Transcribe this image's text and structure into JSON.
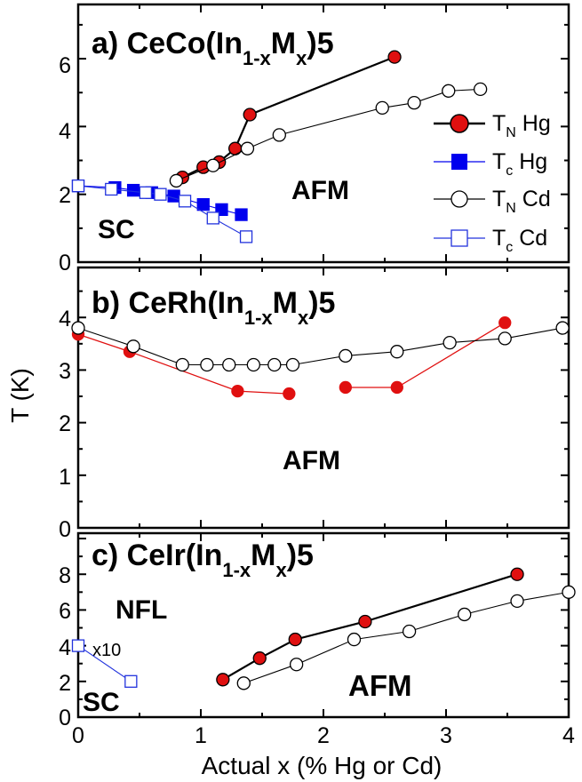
{
  "chart_data": {
    "type": "scatter",
    "xlabel": "Actual x (% Hg or Cd)",
    "ylabel": "T (K)",
    "xlim": [
      0,
      4
    ],
    "xticks": [
      "0",
      "1",
      "2",
      "3",
      "4"
    ],
    "colors": {
      "hg": "#e01010",
      "hg_line": "#000000",
      "tn_hg_b_line": "#e01010",
      "tc_hg": "#0000ee",
      "cd": "#000000",
      "tc_cd": "#2233dd"
    },
    "legend": {
      "placement": "right",
      "entries": [
        {
          "main": "T",
          "sub": "N",
          "rest": " Hg"
        },
        {
          "main": "T",
          "sub": "c",
          "rest": " Hg"
        },
        {
          "main": "T",
          "sub": "N",
          "rest": " Cd"
        },
        {
          "main": "T",
          "sub": "c",
          "rest": " Cd"
        }
      ]
    },
    "panels": [
      {
        "title": {
          "prefix": "a) CeCo(In",
          "sub": "1-x",
          "mid": "M",
          "sub2": "x",
          "suffix": ")5"
        },
        "ylim": [
          0,
          7.6
        ],
        "yticks": [
          "0",
          "2",
          "4",
          "6"
        ],
        "annotations": [
          "AFM",
          "SC"
        ],
        "series": [
          {
            "name": "TN Hg",
            "marker": "circle",
            "filled": true,
            "x": [
              0.85,
              1.02,
              1.15,
              1.28,
              1.4,
              2.58
            ],
            "y": [
              2.5,
              2.8,
              2.95,
              3.35,
              4.35,
              6.05
            ]
          },
          {
            "name": "Tc Hg",
            "marker": "square",
            "filled": true,
            "x": [
              0.0,
              0.3,
              0.45,
              0.6,
              0.78,
              1.02,
              1.17,
              1.33
            ],
            "y": [
              2.25,
              2.2,
              2.12,
              2.05,
              1.95,
              1.7,
              1.55,
              1.4
            ]
          },
          {
            "name": "TN Cd",
            "marker": "circle",
            "filled": false,
            "x": [
              0.8,
              1.1,
              1.38,
              1.64,
              2.48,
              2.74,
              3.02,
              3.28
            ],
            "y": [
              2.4,
              2.85,
              3.35,
              3.75,
              4.55,
              4.7,
              5.05,
              5.1
            ]
          },
          {
            "name": "Tc Cd",
            "marker": "square",
            "filled": false,
            "x": [
              0.0,
              0.27,
              0.55,
              0.67,
              0.87,
              1.1,
              1.37
            ],
            "y": [
              2.25,
              2.15,
              2.05,
              2.0,
              1.8,
              1.3,
              0.75
            ]
          }
        ]
      },
      {
        "title": {
          "prefix": "b) CeRh(In",
          "sub": "1-x",
          "mid": "M",
          "sub2": "x",
          "suffix": ")5"
        },
        "ylim": [
          0,
          4.95
        ],
        "yticks": [
          "0",
          "1",
          "2",
          "3",
          "4"
        ],
        "annotations": [
          "AFM"
        ],
        "series": [
          {
            "name": "TN Hg",
            "marker": "circle",
            "filled": true,
            "segments": [
              [
                0,
                4
              ],
              [
                4,
                7
              ]
            ],
            "x": [
              0.0,
              0.42,
              1.3,
              1.72,
              2.18,
              2.6,
              3.48
            ],
            "y": [
              3.68,
              3.35,
              2.6,
              2.55,
              2.67,
              2.67,
              3.9
            ]
          },
          {
            "name": "TN Cd",
            "marker": "circle",
            "filled": false,
            "x": [
              0.0,
              0.45,
              0.85,
              1.05,
              1.23,
              1.43,
              1.6,
              1.75,
              2.18,
              2.6,
              3.03,
              3.48,
              3.95
            ],
            "y": [
              3.8,
              3.45,
              3.1,
              3.1,
              3.1,
              3.1,
              3.1,
              3.1,
              3.27,
              3.35,
              3.52,
              3.6,
              3.8
            ]
          }
        ]
      },
      {
        "title": {
          "prefix": "c) CeIr(In",
          "sub": "1-x",
          "mid": "M",
          "sub2": "x",
          "suffix": ")5"
        },
        "ylim": [
          0,
          10.3
        ],
        "yticks": [
          "0",
          "2",
          "4",
          "6",
          "8"
        ],
        "annotations": [
          "NFL",
          "x10",
          "SC",
          "AFM"
        ],
        "series": [
          {
            "name": "TN Hg",
            "marker": "circle",
            "filled": true,
            "x": [
              1.18,
              1.48,
              1.77,
              2.34,
              3.58
            ],
            "y": [
              2.1,
              3.3,
              4.35,
              5.35,
              8.0
            ]
          },
          {
            "name": "TN Cd",
            "marker": "circle",
            "filled": false,
            "x": [
              1.35,
              1.78,
              2.25,
              2.7,
              3.15,
              3.58,
              4.0
            ],
            "y": [
              1.9,
              2.95,
              4.35,
              4.8,
              5.75,
              6.5,
              7.0
            ]
          },
          {
            "name": "Tc Cd",
            "marker": "square",
            "filled": false,
            "x": [
              0.0,
              0.43
            ],
            "y": [
              4.0,
              2.0
            ]
          }
        ]
      }
    ]
  }
}
